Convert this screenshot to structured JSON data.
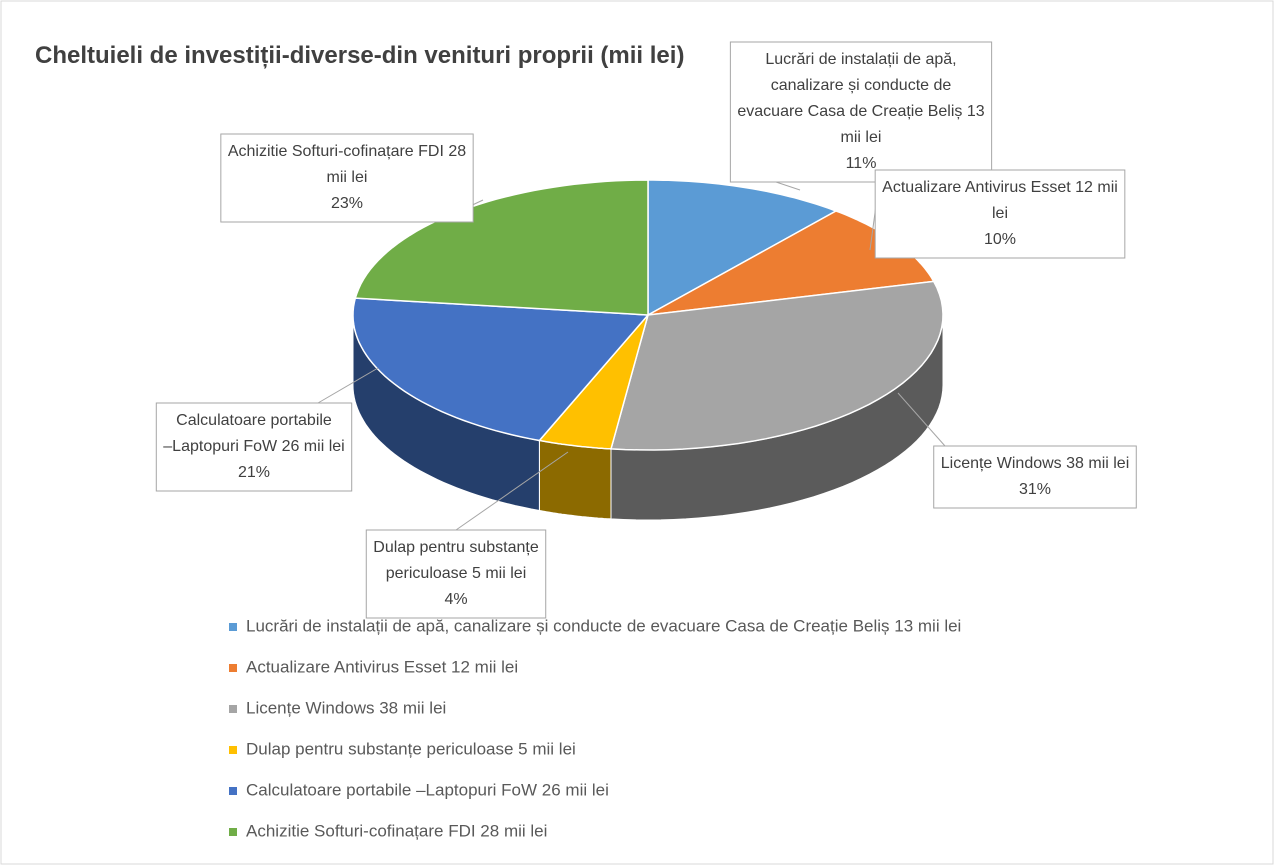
{
  "chart_data": {
    "type": "pie",
    "title": "Cheltuieli de investiții-diverse-din venituri proprii (mii lei)",
    "categories": [
      "Lucrări de instalații de apă, canalizare și conducte de evacuare Casa de Creație Beliș 13 mii lei",
      "Actualizare Antivirus Esset 12 mii lei",
      "Licențe Windows 38 mii lei",
      "Dulap pentru substanțe periculoase 5 mii lei",
      "Calculatoare portabile –Laptopuri FoW 26 mii lei",
      "Achizitie Softuri-cofinațare FDI 28 mii lei"
    ],
    "values": [
      11,
      10,
      31,
      4,
      21,
      23
    ],
    "value_labels": [
      "11%",
      "10%",
      "31%",
      "4%",
      "21%",
      "23%"
    ],
    "colors": [
      "#5b9bd5",
      "#ed7d31",
      "#a5a5a5",
      "#ffc000",
      "#4472c4",
      "#70ad47"
    ],
    "legend": "bottom"
  }
}
